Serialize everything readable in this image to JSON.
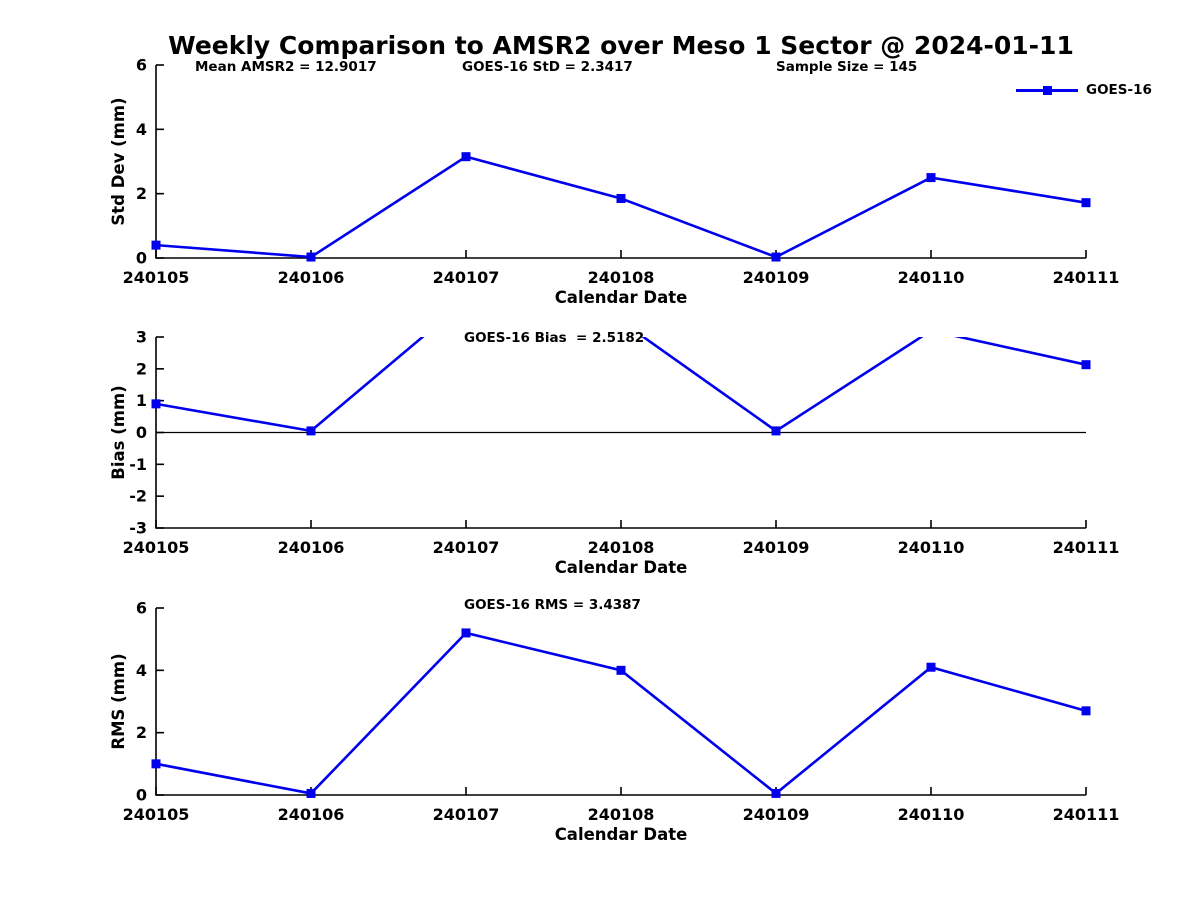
{
  "title": "Weekly Comparison to AMSR2 over Meso 1 Sector @ 2024-01-11",
  "header_annotations": {
    "mean": "Mean AMSR2 = 12.9017",
    "std": "GOES-16 StD = 2.3417",
    "sample": "Sample Size = 145"
  },
  "legend": {
    "label": "GOES-16"
  },
  "colors": {
    "line": "#0000EE",
    "axis": "#000000",
    "zero_line": "#000000"
  },
  "chart_data": [
    {
      "type": "line",
      "name": "std-dev",
      "categories": [
        "240105",
        "240106",
        "240107",
        "240108",
        "240109",
        "240110",
        "240111"
      ],
      "series": [
        {
          "name": "GOES-16",
          "values": [
            0.4,
            0.03,
            3.15,
            1.85,
            0.03,
            2.5,
            1.72
          ]
        }
      ],
      "xlabel": "Calendar Date",
      "ylabel": "Std Dev (mm)",
      "ylim": [
        0,
        6
      ],
      "yticks": [
        6,
        4,
        2,
        0
      ],
      "grid": false,
      "zero_line": false,
      "annotation": "",
      "legend_position": "top-right"
    },
    {
      "type": "line",
      "name": "bias",
      "categories": [
        "240105",
        "240106",
        "240107",
        "240108",
        "240109",
        "240110",
        "240111"
      ],
      "series": [
        {
          "name": "GOES-16",
          "values": [
            0.9,
            0.05,
            4.15,
            3.5,
            0.05,
            3.2,
            2.13
          ]
        }
      ],
      "xlabel": "Calendar Date",
      "ylabel": "Bias (mm)",
      "ylim": [
        -3,
        3
      ],
      "yticks": [
        3,
        2,
        1,
        0,
        -1,
        -2,
        -3
      ],
      "grid": false,
      "zero_line": true,
      "annotation": "GOES-16 Bias  = 2.5182",
      "legend_position": "none"
    },
    {
      "type": "line",
      "name": "rms",
      "categories": [
        "240105",
        "240106",
        "240107",
        "240108",
        "240109",
        "240110",
        "240111"
      ],
      "series": [
        {
          "name": "GOES-16",
          "values": [
            1.0,
            0.05,
            5.2,
            4.0,
            0.05,
            4.1,
            2.7
          ]
        }
      ],
      "xlabel": "Calendar Date",
      "ylabel": "RMS (mm)",
      "ylim": [
        0,
        6
      ],
      "yticks": [
        6,
        4,
        2,
        0
      ],
      "grid": false,
      "zero_line": false,
      "annotation": "GOES-16 RMS = 3.4387",
      "legend_position": "none"
    }
  ]
}
